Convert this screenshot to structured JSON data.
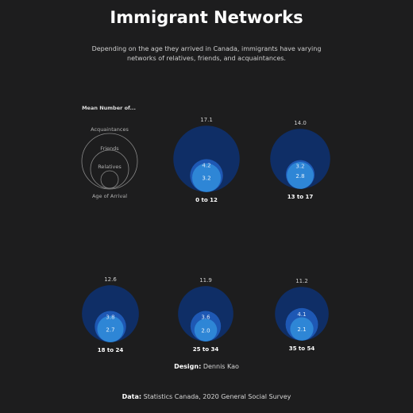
{
  "title": "Immigrant Networks",
  "subtitle": "Depending on the age they arrived in Canada, immigrants have varying networks of relatives, friends, and acquaintances.",
  "legend": {
    "heading": "Mean Number of...",
    "acquaintances": "Acquaintances",
    "friends": "Friends",
    "relatives": "Relatives",
    "age": "Age of Arrival"
  },
  "credits": {
    "design_label": "Design:",
    "design_value": "Dennis Kao",
    "data_label": "Data:",
    "data_value": "Statistics Canada, 2020 General Social Survey"
  },
  "colors": {
    "background": "#1d1d1e",
    "acquaintances": "#0f2e66",
    "friends": "#1e58b4",
    "relatives": "#2e86d6"
  },
  "chart_data": {
    "type": "nested-bubble",
    "categories": [
      "0 to 12",
      "13 to 17",
      "18 to 24",
      "25 to 34",
      "35 to 54"
    ],
    "series": [
      {
        "name": "Acquaintances",
        "values": [
          17.1,
          14.0,
          12.6,
          11.9,
          11.2
        ]
      },
      {
        "name": "Friends",
        "values": [
          4.2,
          3.2,
          3.8,
          3.6,
          4.1
        ]
      },
      {
        "name": "Relatives",
        "values": [
          3.2,
          2.8,
          2.7,
          2.0,
          2.1
        ]
      }
    ]
  }
}
